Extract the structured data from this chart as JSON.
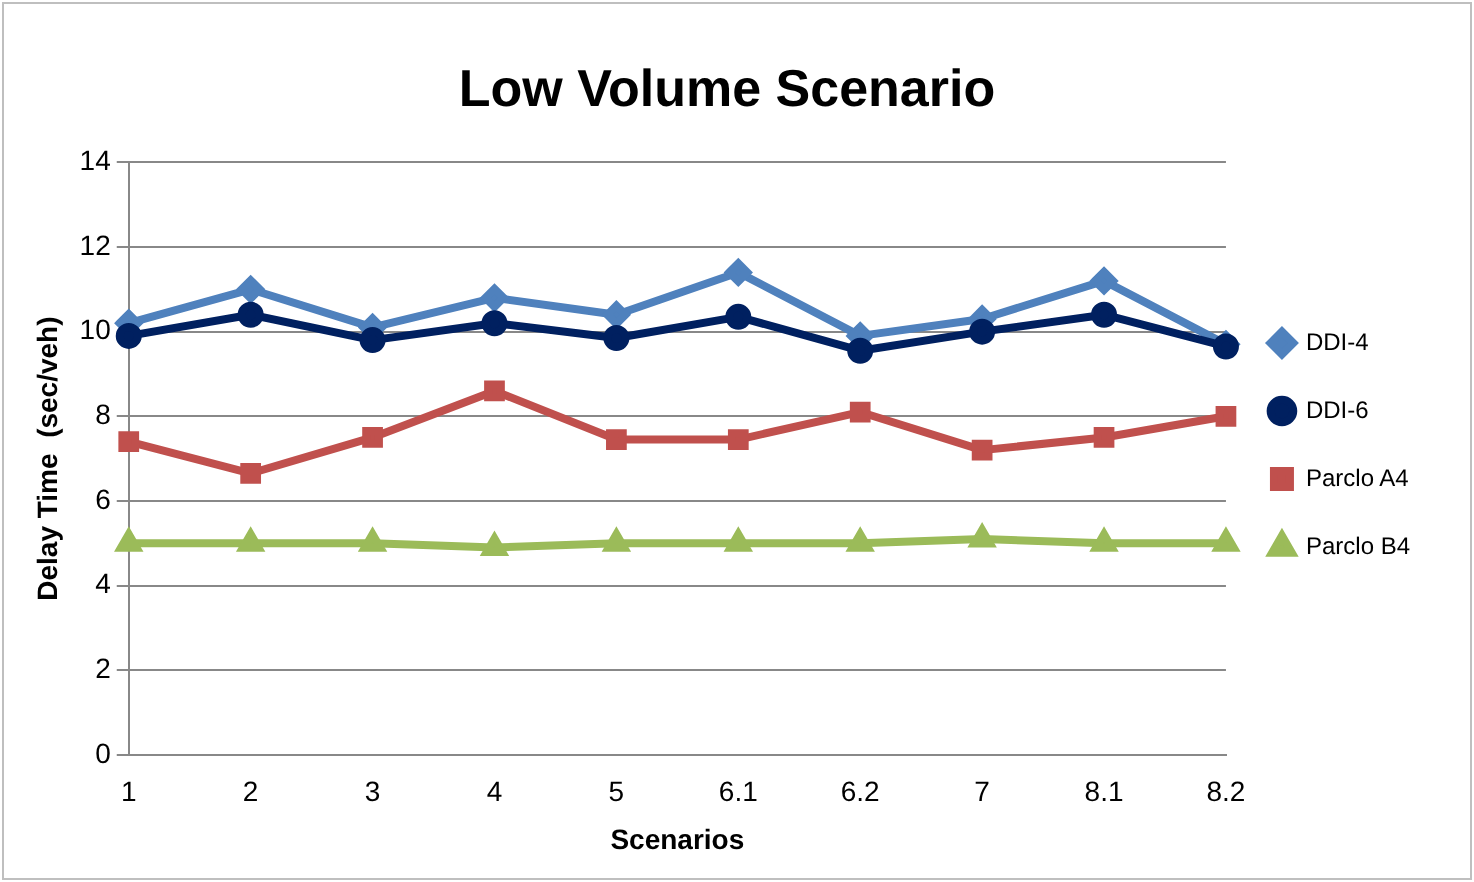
{
  "chart_data": {
    "type": "line",
    "title": "Low Volume Scenario",
    "xlabel": "Scenarios",
    "ylabel": "Delay Time  (sec/veh)",
    "categories": [
      "1",
      "2",
      "3",
      "4",
      "5",
      "6.1",
      "6.2",
      "7",
      "8.1",
      "8.2"
    ],
    "series": [
      {
        "name": "DDI-4",
        "color": "#4f81bd",
        "marker": "diamond",
        "values": [
          10.2,
          11.0,
          10.1,
          10.8,
          10.4,
          11.4,
          9.9,
          10.3,
          11.2,
          9.7
        ]
      },
      {
        "name": "DDI-6",
        "color": "#002060",
        "marker": "circle",
        "values": [
          9.9,
          10.4,
          9.8,
          10.2,
          9.85,
          10.35,
          9.55,
          10.0,
          10.4,
          9.65
        ]
      },
      {
        "name": "Parclo A4",
        "color": "#c0504d",
        "marker": "square",
        "values": [
          7.4,
          6.65,
          7.5,
          8.6,
          7.45,
          7.45,
          8.1,
          7.2,
          7.5,
          8.0
        ]
      },
      {
        "name": "Parclo B4",
        "color": "#9bbb59",
        "marker": "triangle",
        "values": [
          5.0,
          5.0,
          5.0,
          4.9,
          5.0,
          5.0,
          5.0,
          5.1,
          5.0,
          5.0
        ]
      }
    ],
    "ylim": [
      0,
      14
    ],
    "yticks": [
      0,
      2,
      4,
      6,
      8,
      10,
      12,
      14
    ],
    "grid": "y",
    "legend": "right"
  }
}
